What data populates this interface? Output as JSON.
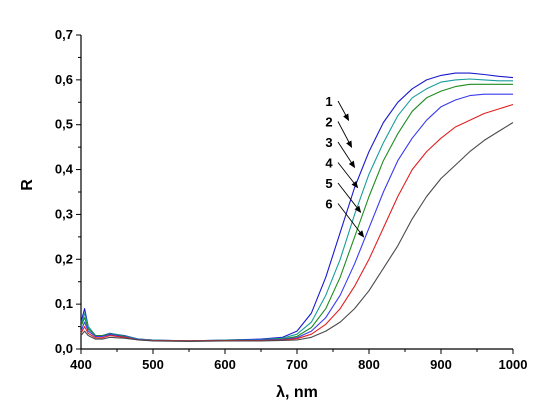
{
  "chart_data": {
    "type": "line",
    "title": "",
    "xlabel": "λ, nm",
    "ylabel": "R",
    "xlim": [
      400,
      1000
    ],
    "ylim": [
      0,
      0.7
    ],
    "x_ticks": [
      "400",
      "500",
      "600",
      "700",
      "800",
      "900",
      "1000"
    ],
    "y_ticks": [
      "0,0",
      "0,1",
      "0,2",
      "0,3",
      "0,4",
      "0,5",
      "0,6",
      "0,7"
    ],
    "grid": false,
    "legend": "none",
    "series": [
      {
        "name": "1",
        "color": "#1a1acc",
        "x": [
          400,
          405,
          410,
          420,
          430,
          440,
          450,
          460,
          480,
          500,
          550,
          600,
          650,
          680,
          700,
          720,
          740,
          760,
          780,
          800,
          820,
          840,
          860,
          880,
          900,
          920,
          940,
          960,
          980,
          1000
        ],
        "y": [
          0.06,
          0.09,
          0.05,
          0.03,
          0.03,
          0.035,
          0.032,
          0.03,
          0.022,
          0.02,
          0.018,
          0.02,
          0.022,
          0.026,
          0.04,
          0.08,
          0.16,
          0.26,
          0.36,
          0.44,
          0.505,
          0.55,
          0.58,
          0.6,
          0.61,
          0.615,
          0.615,
          0.612,
          0.608,
          0.605
        ]
      },
      {
        "name": "2",
        "color": "#1a9c9c",
        "x": [
          400,
          405,
          410,
          420,
          430,
          440,
          450,
          460,
          480,
          500,
          550,
          600,
          650,
          680,
          700,
          720,
          740,
          760,
          780,
          800,
          820,
          840,
          860,
          880,
          900,
          920,
          940,
          960,
          980,
          1000
        ],
        "y": [
          0.05,
          0.08,
          0.05,
          0.03,
          0.03,
          0.034,
          0.032,
          0.029,
          0.022,
          0.02,
          0.018,
          0.02,
          0.021,
          0.024,
          0.033,
          0.06,
          0.12,
          0.2,
          0.3,
          0.39,
          0.46,
          0.52,
          0.56,
          0.58,
          0.595,
          0.6,
          0.602,
          0.6,
          0.598,
          0.598
        ]
      },
      {
        "name": "3",
        "color": "#1e8c1e",
        "x": [
          400,
          405,
          410,
          420,
          430,
          440,
          450,
          460,
          480,
          500,
          550,
          600,
          650,
          680,
          700,
          720,
          740,
          760,
          780,
          800,
          820,
          840,
          860,
          880,
          900,
          920,
          940,
          960,
          980,
          1000
        ],
        "y": [
          0.05,
          0.07,
          0.045,
          0.03,
          0.03,
          0.033,
          0.031,
          0.028,
          0.021,
          0.019,
          0.018,
          0.019,
          0.02,
          0.022,
          0.028,
          0.048,
          0.09,
          0.16,
          0.25,
          0.34,
          0.42,
          0.48,
          0.53,
          0.56,
          0.575,
          0.585,
          0.59,
          0.59,
          0.59,
          0.59
        ]
      },
      {
        "name": "4",
        "color": "#3a3af0",
        "x": [
          400,
          405,
          410,
          420,
          430,
          440,
          450,
          460,
          480,
          500,
          550,
          600,
          650,
          680,
          700,
          720,
          740,
          760,
          780,
          800,
          820,
          840,
          860,
          880,
          900,
          920,
          940,
          960,
          980,
          1000
        ],
        "y": [
          0.04,
          0.06,
          0.04,
          0.028,
          0.028,
          0.032,
          0.03,
          0.027,
          0.021,
          0.019,
          0.018,
          0.019,
          0.02,
          0.021,
          0.025,
          0.04,
          0.07,
          0.12,
          0.19,
          0.27,
          0.35,
          0.42,
          0.47,
          0.51,
          0.54,
          0.555,
          0.565,
          0.568,
          0.568,
          0.568
        ]
      },
      {
        "name": "5",
        "color": "#e02020",
        "x": [
          400,
          405,
          410,
          420,
          430,
          440,
          450,
          460,
          480,
          500,
          550,
          600,
          650,
          680,
          700,
          720,
          740,
          760,
          780,
          800,
          820,
          840,
          860,
          880,
          900,
          920,
          940,
          960,
          980,
          1000
        ],
        "y": [
          0.035,
          0.05,
          0.035,
          0.025,
          0.025,
          0.03,
          0.028,
          0.026,
          0.02,
          0.019,
          0.018,
          0.019,
          0.019,
          0.02,
          0.023,
          0.033,
          0.055,
          0.09,
          0.14,
          0.2,
          0.27,
          0.34,
          0.4,
          0.44,
          0.47,
          0.495,
          0.51,
          0.525,
          0.535,
          0.545
        ]
      },
      {
        "name": "6",
        "color": "#4a4a4a",
        "x": [
          400,
          405,
          410,
          420,
          430,
          440,
          450,
          460,
          480,
          500,
          550,
          600,
          650,
          680,
          700,
          720,
          740,
          760,
          780,
          800,
          820,
          840,
          860,
          880,
          900,
          920,
          940,
          960,
          980,
          1000
        ],
        "y": [
          0.03,
          0.04,
          0.03,
          0.022,
          0.022,
          0.026,
          0.025,
          0.024,
          0.02,
          0.018,
          0.017,
          0.018,
          0.018,
          0.019,
          0.02,
          0.026,
          0.04,
          0.06,
          0.09,
          0.13,
          0.18,
          0.23,
          0.29,
          0.34,
          0.38,
          0.41,
          0.44,
          0.465,
          0.485,
          0.505
        ]
      }
    ],
    "annotations": [
      {
        "text": "1",
        "series": "1",
        "arrow_to": [
          848,
          0.51
        ]
      },
      {
        "text": "2",
        "series": "2",
        "arrow_to": [
          848,
          0.45
        ]
      },
      {
        "text": "3",
        "series": "3",
        "arrow_to": [
          848,
          0.405
        ]
      },
      {
        "text": "4",
        "series": "4",
        "arrow_to": [
          848,
          0.36
        ]
      },
      {
        "text": "5",
        "series": "5",
        "arrow_to": [
          848,
          0.305
        ]
      },
      {
        "text": "6",
        "series": "6",
        "arrow_to": [
          848,
          0.25
        ]
      }
    ]
  }
}
